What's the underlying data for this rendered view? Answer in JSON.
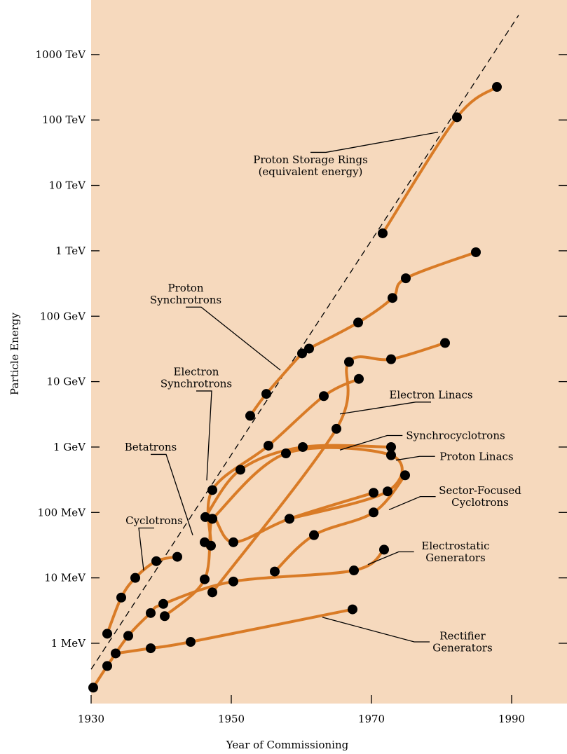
{
  "chart_data": {
    "type": "line",
    "title": "",
    "xlabel": "Year of Commissioning",
    "ylabel": "Particle Energy",
    "xlim": [
      1930,
      2000
    ],
    "x_ticks": [
      1930,
      1950,
      1970,
      1990
    ],
    "x_tick_labels": [
      "1930",
      "1950",
      "1970",
      "1990"
    ],
    "y_scale": "log",
    "y_unit": "eV",
    "ylim": [
      120000.0,
      1e+16
    ],
    "y_ticks": [
      1000000.0,
      10000000.0,
      100000000.0,
      1000000000.0,
      10000000000.0,
      100000000000.0,
      1000000000000.0,
      10000000000000.0,
      100000000000000.0,
      1000000000000000.0
    ],
    "y_tick_labels": [
      "1 MeV",
      "10 MeV",
      "100 MeV",
      "1 GeV",
      "10 GeV",
      "100 GeV",
      "1 TeV",
      "10 TeV",
      "100 TeV",
      "1000 TeV"
    ],
    "background_color": "#f6d9bd",
    "curve_color": "#d97b26",
    "marker_color": "#000000",
    "trend_line": {
      "style": "dashed",
      "points": [
        [
          1930,
          400000.0
        ],
        [
          1991,
          4000000000000000.0
        ]
      ]
    },
    "series": [
      {
        "label": [
          "Cyclotrons"
        ],
        "label_anchor": [
          1939,
          75000000.0
        ],
        "pointer": [
          1937.5,
          13000000.0
        ],
        "points": [
          [
            1932.3,
            1400000.0
          ],
          [
            1934.3,
            5000000.0
          ],
          [
            1936.3,
            10000000.0
          ],
          [
            1939.3,
            18000000.0
          ],
          [
            1942.3,
            21000000.0
          ]
        ]
      },
      {
        "label": [
          "Electrostatic",
          "Generators"
        ],
        "label_anchor": [
          1982,
          25000000.0
        ],
        "pointer": [
          1969.5,
          16000000.0
        ],
        "points": [
          [
            1930.3,
            210000.0
          ],
          [
            1932.3,
            450000.0
          ],
          [
            1935.3,
            1300000.0
          ],
          [
            1938.5,
            2900000.0
          ],
          [
            1940.3,
            4000000.0
          ],
          [
            1950.3,
            8800000.0
          ],
          [
            1967.5,
            13000000.0
          ],
          [
            1971.8,
            27000000.0
          ]
        ]
      },
      {
        "label": [
          "Rectifier",
          "Generators"
        ],
        "label_anchor": [
          1983,
          1050000.0
        ],
        "pointer": [
          1963,
          2500000.0
        ],
        "points": [
          [
            1933.5,
            700000.0
          ],
          [
            1938.5,
            840000.0
          ],
          [
            1944.2,
            1050000.0
          ],
          [
            1967.3,
            3300000.0
          ]
        ]
      },
      {
        "label": [
          "Betatrons"
        ],
        "label_anchor": [
          1938.5,
          1000000000.0
        ],
        "pointer": [
          1944.5,
          45000000.0
        ],
        "points": [
          [
            1940.5,
            2600000.0
          ],
          [
            1946.2,
            9500000.0
          ],
          [
            1947.3,
            80000000.0
          ],
          [
            1950.3,
            35000000.0
          ],
          [
            1958.3,
            80000000.0
          ],
          [
            1970.3,
            200000000.0
          ]
        ]
      },
      {
        "label": [
          "Electron",
          "Synchrotrons"
        ],
        "label_anchor": [
          1945,
          11500000000.0
        ],
        "pointer": [
          1946.5,
          310000000.0
        ],
        "points": [
          [
            1946.2,
            35000000.0
          ],
          [
            1947.1,
            31000000.0
          ],
          [
            1947.3,
            220000000.0
          ],
          [
            1955.3,
            1050000000.0
          ],
          [
            1963.2,
            6000000000.0
          ],
          [
            1968.2,
            11000000000.0
          ]
        ]
      },
      {
        "label": [
          "Electron Linacs"
        ],
        "label_anchor": [
          1978.5,
          6300000000.0
        ],
        "pointer": [
          1965.5,
          3200000000.0
        ],
        "points": [
          [
            1947.3,
            6000000.0
          ],
          [
            1965,
            1900000000.0
          ],
          [
            1966.8,
            20000000000.0
          ],
          [
            1972.8,
            22000000000.0
          ],
          [
            1980.5,
            39000000000.0
          ]
        ]
      },
      {
        "label": [
          "Synchrocyclotrons"
        ],
        "label_anchor": [
          1982,
          1500000000.0
        ],
        "pointer": [
          1965.5,
          900000000.0
        ],
        "points": [
          [
            1946.3,
            85000000.0
          ],
          [
            1951.3,
            450000000.0
          ],
          [
            1960.2,
            1000000000.0
          ],
          [
            1972.8,
            1000000000.0
          ]
        ]
      },
      {
        "label": [
          "Proton Linacs"
        ],
        "label_anchor": [
          1985,
          720000000.0
        ],
        "pointer": [
          1973.5,
          630000000.0
        ],
        "points": [
          [
            1947.3,
            80000000.0
          ],
          [
            1957.8,
            800000000.0
          ],
          [
            1972.8,
            750000000.0
          ],
          [
            1972.3,
            210000000.0
          ],
          [
            1958.3,
            80000000.0
          ]
        ]
      },
      {
        "label": [
          "Sector-Focused",
          "Cyclotrons"
        ],
        "label_anchor": [
          1985.5,
          175000000.0
        ],
        "pointer": [
          1972.5,
          110000000.0
        ],
        "points": [
          [
            1956.2,
            12500000.0
          ],
          [
            1961.8,
            45000000.0
          ],
          [
            1970.3,
            100000000.0
          ],
          [
            1974.8,
            370000000.0
          ]
        ]
      },
      {
        "label": [
          "Proton",
          "Synchrotrons"
        ],
        "label_anchor": [
          1943.5,
          220000000000.0
        ],
        "pointer": [
          1957,
          15000000000.0
        ],
        "points": [
          [
            1952.7,
            3000000000.0
          ],
          [
            1955,
            6500000000.0
          ],
          [
            1960.1,
            27000000000.0
          ],
          [
            1961.1,
            32000000000.0
          ],
          [
            1968.1,
            80000000000.0
          ],
          [
            1973,
            190000000000.0
          ],
          [
            1974.9,
            380000000000.0
          ],
          [
            1984.9,
            950000000000.0
          ]
        ]
      },
      {
        "label": [
          "Proton Storage Rings",
          "(equivalent energy)"
        ],
        "label_anchor": [
          1961.3,
          20000000000000.0
        ],
        "pointer": [
          1979.5,
          65000000000000.0
        ],
        "points": [
          [
            1971.6,
            1850000000000.0
          ],
          [
            1982.2,
            110000000000000.0
          ],
          [
            1987.9,
            320000000000000.0
          ]
        ]
      }
    ]
  }
}
